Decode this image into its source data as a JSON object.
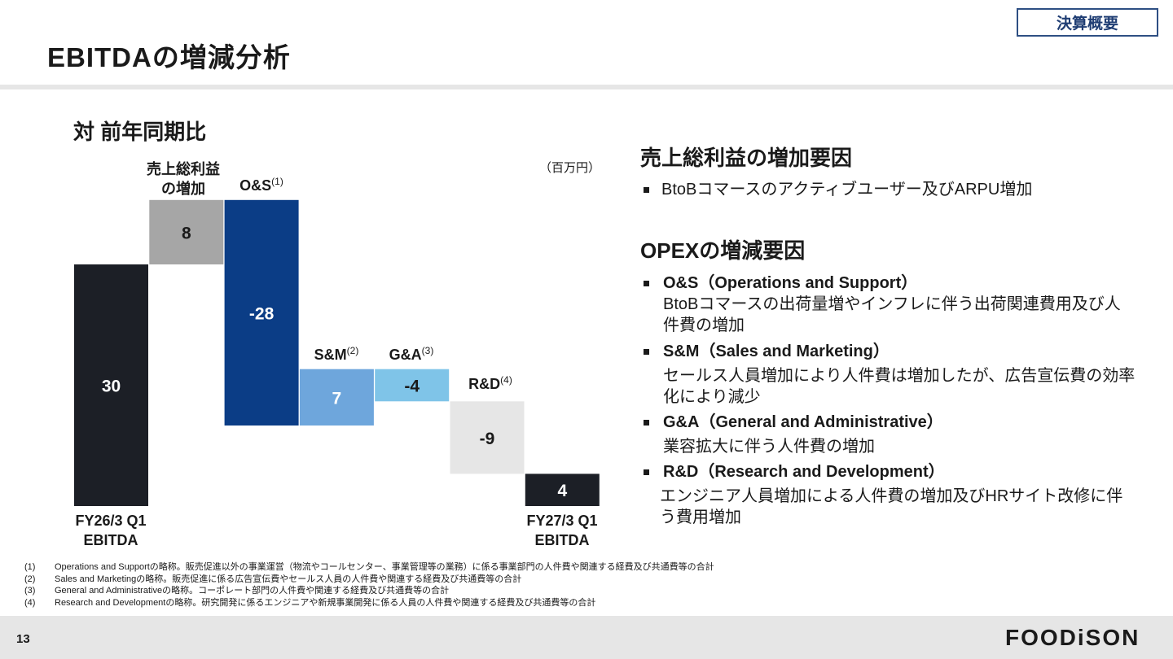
{
  "header": {
    "title": "EBITDAの増減分析",
    "badge": "決算概要"
  },
  "section_title": "対 前年同期比",
  "unit": "（百万円）",
  "chart_data": {
    "type": "waterfall",
    "title": "",
    "unit": "（百万円）",
    "ylim": [
      0,
      38
    ],
    "steps": [
      {
        "label": "FY26/3 Q1\nEBITDA",
        "value": 30,
        "display": "30",
        "kind": "total",
        "color": "#1c1f26"
      },
      {
        "label": "売上総利益\nの増加",
        "value": 8,
        "display": "8",
        "kind": "delta",
        "color": "#a6a6a6"
      },
      {
        "label": "O&S",
        "note": "(1)",
        "value": -28,
        "display": "-28",
        "kind": "delta",
        "color": "#0b3d86"
      },
      {
        "label": "S&M",
        "note": "(2)",
        "value": 7,
        "display": "7",
        "kind": "delta",
        "color": "#6ea6dc"
      },
      {
        "label": "G&A",
        "note": "(3)",
        "value": -4,
        "display": "-4",
        "kind": "delta",
        "color": "#7fc4e8"
      },
      {
        "label": "R&D",
        "note": "(4)",
        "value": -9,
        "display": "-9",
        "kind": "delta",
        "color": "#e6e6e6"
      },
      {
        "label": "FY27/3 Q1\nEBITDA",
        "value": 4,
        "display": "4",
        "kind": "total",
        "color": "#1c1f26"
      }
    ]
  },
  "right": {
    "gross_heading": "売上総利益の増加要因",
    "gross_bullet": "BtoBコマースのアクティブユーザー及びARPU増加",
    "opex_heading": "OPEXの増減要因",
    "items": [
      {
        "head": "O&S（Operations and Support）",
        "desc": "BtoBコマースの出荷量増やインフレに伴う出荷関連費用及び人件費の増加"
      },
      {
        "head": "S&M（Sales and Marketing）",
        "desc": "セールス人員増加により人件費は増加したが、広告宣伝費の効率化により減少"
      },
      {
        "head": "G&A（General and Administrative）",
        "desc": "業容拡大に伴う人件費の増加"
      },
      {
        "head": "R&D（Research and Development）",
        "desc": "エンジニア人員増加による人件費の増加及びHRサイト改修に伴う費用増加"
      }
    ]
  },
  "footnotes": [
    {
      "num": "(1)",
      "text": "Operations and Supportの略称。販売促進以外の事業運営（物流やコールセンター、事業管理等の業務）に係る事業部門の人件費や関連する経費及び共通費等の合計"
    },
    {
      "num": "(2)",
      "text": "Sales and Marketingの略称。販売促進に係る広告宣伝費やセールス人員の人件費や関連する経費及び共通費等の合計"
    },
    {
      "num": "(3)",
      "text": "General and Administrativeの略称。コーポレート部門の人件費や関連する経費及び共通費等の合計"
    },
    {
      "num": "(4)",
      "text": "Research and Developmentの略称。研究開発に係るエンジニアや新規事業開発に係る人員の人件費や関連する経費及び共通費等の合計"
    }
  ],
  "footer": {
    "page": "13",
    "logo": "FOODiSON"
  }
}
